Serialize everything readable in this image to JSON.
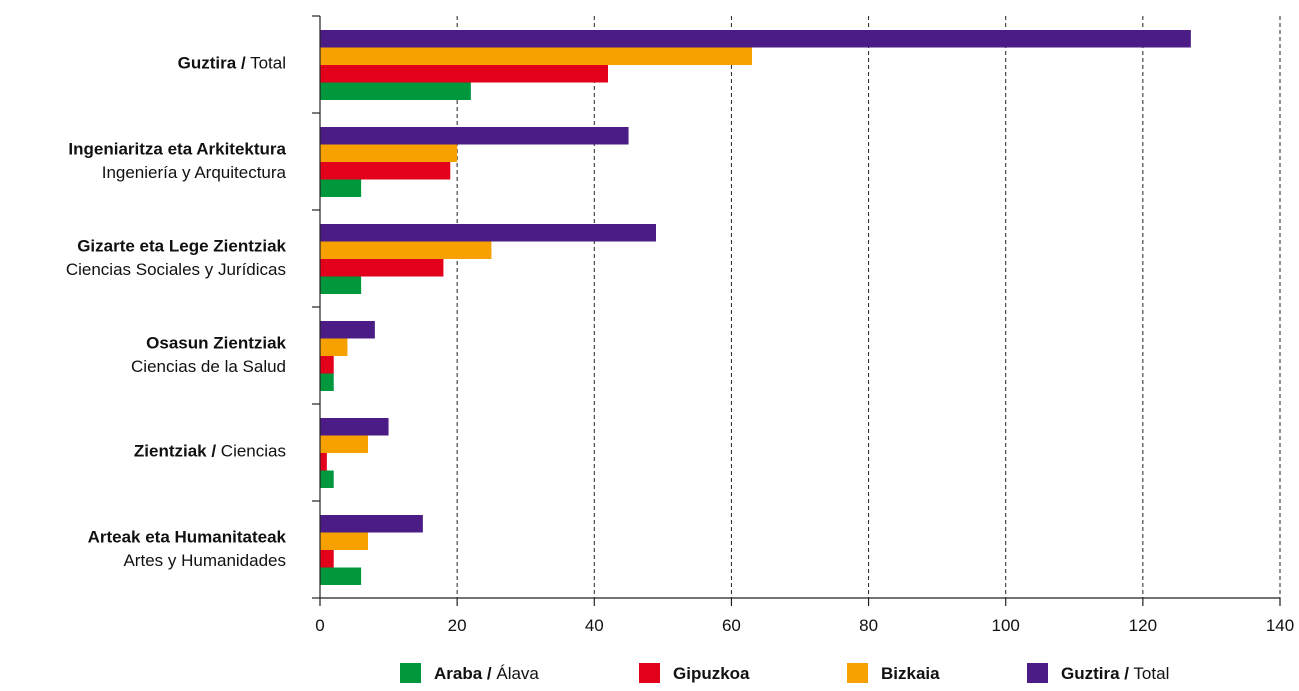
{
  "chart_data": {
    "type": "bar",
    "orientation": "horizontal",
    "categories": [
      {
        "bold": "Guztira /",
        "normal": " Total",
        "line2": ""
      },
      {
        "bold": "Ingeniaritza eta Arkitektura",
        "normal": "",
        "line2": "Ingeniería y Arquitectura"
      },
      {
        "bold": "Gizarte eta Lege Zientziak",
        "normal": "",
        "line2": "Ciencias Sociales y Jurídicas"
      },
      {
        "bold": "Osasun Zientziak",
        "normal": "",
        "line2": "Ciencias de la Salud"
      },
      {
        "bold": "Zientziak /",
        "normal": " Ciencias",
        "line2": ""
      },
      {
        "bold": "Arteak eta Humanitateak",
        "normal": "",
        "line2": "Artes y Humanidades"
      }
    ],
    "series": [
      {
        "name_bold": "Guztira /",
        "name_normal": " Total",
        "color": "#4b1c85",
        "values": [
          127,
          45,
          49,
          8,
          10,
          15
        ]
      },
      {
        "name_bold": "Bizkaia",
        "name_normal": "",
        "color": "#f7a100",
        "values": [
          63,
          20,
          25,
          4,
          7,
          7
        ]
      },
      {
        "name_bold": "Gipuzkoa",
        "name_normal": "",
        "color": "#e2001a",
        "values": [
          42,
          19,
          18,
          2,
          1,
          2
        ]
      },
      {
        "name_bold": "Araba /",
        "name_normal": " Álava",
        "color": "#00973d",
        "values": [
          22,
          6,
          6,
          2,
          2,
          6
        ]
      }
    ],
    "legend_order": [
      3,
      2,
      1,
      0
    ],
    "xlim": [
      0,
      140
    ],
    "xticks": [
      0,
      20,
      40,
      60,
      80,
      100,
      120,
      140
    ],
    "grid": "vertical dashed",
    "legend_position": "bottom"
  }
}
